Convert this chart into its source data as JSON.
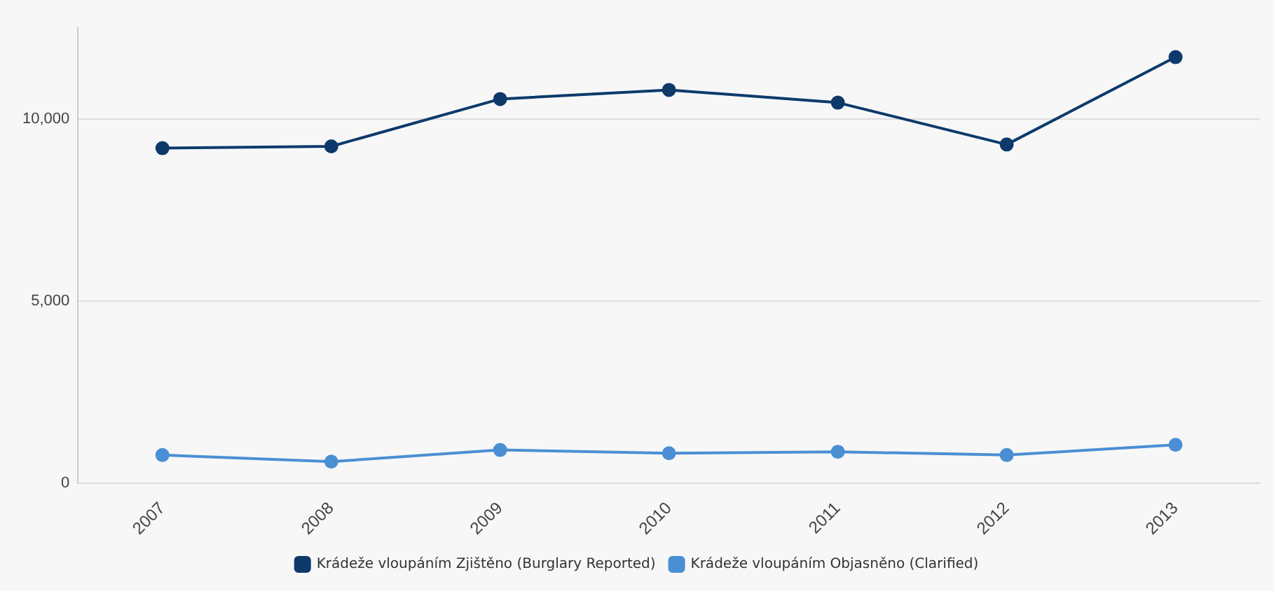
{
  "chart_data": {
    "type": "line",
    "categories": [
      "2007",
      "2008",
      "2009",
      "2010",
      "2011",
      "2012",
      "2013"
    ],
    "series": [
      {
        "name": "Krádeže vloupáním Zjištěno (Burglary Reported)",
        "color": "#0d3a6b",
        "values": [
          9200,
          9250,
          10550,
          10800,
          10450,
          9300,
          11700
        ]
      },
      {
        "name": "Krádeže vloupáním Objasněno (Clarified)",
        "color": "#4a8fd4",
        "values": [
          770,
          590,
          910,
          820,
          860,
          770,
          1050
        ]
      }
    ],
    "ylim": [
      0,
      12500
    ],
    "yticks": [
      {
        "value": 0,
        "label": "0"
      },
      {
        "value": 5000,
        "label": "5,000"
      },
      {
        "value": 10000,
        "label": "10,000"
      }
    ],
    "grid": "y",
    "legend": "bottom",
    "marker": "circle",
    "line_style": "solid"
  }
}
